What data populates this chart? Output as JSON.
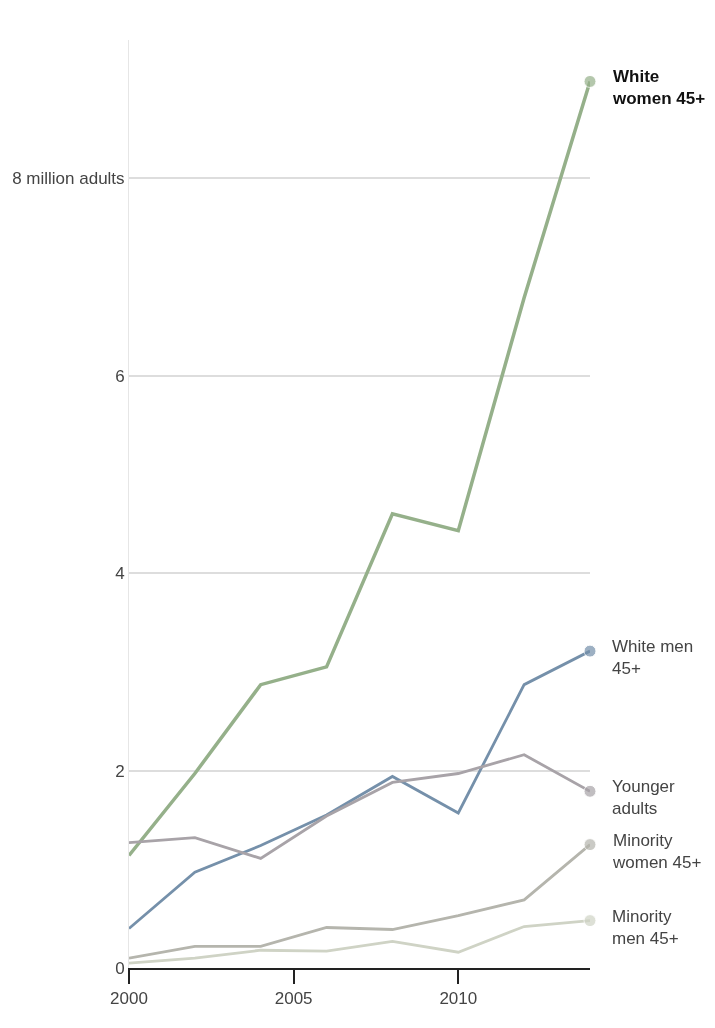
{
  "chart_data": {
    "type": "line",
    "x": [
      2000,
      2002,
      2004,
      2006,
      2008,
      2010,
      2012,
      2014
    ],
    "series": [
      {
        "name": "White women 45+",
        "color": "#95b08a",
        "values": [
          1.14,
          1.97,
          2.87,
          3.05,
          4.6,
          4.43,
          6.79,
          8.98
        ]
      },
      {
        "name": "White men 45+",
        "color": "#7590aa",
        "values": [
          0.4,
          0.97,
          1.24,
          1.55,
          1.94,
          1.57,
          2.87,
          3.21
        ]
      },
      {
        "name": "Younger adults",
        "color": "#a8a3a8",
        "values": [
          1.27,
          1.32,
          1.11,
          1.54,
          1.88,
          1.97,
          2.16,
          1.79
        ]
      },
      {
        "name": "Minority women 45+",
        "color": "#b5b5ad",
        "values": [
          0.1,
          0.22,
          0.22,
          0.41,
          0.39,
          0.53,
          0.69,
          1.25
        ]
      },
      {
        "name": "Minority men 45+",
        "color": "#cfd3c5",
        "values": [
          0.05,
          0.1,
          0.18,
          0.17,
          0.27,
          0.16,
          0.42,
          0.48
        ]
      }
    ],
    "xlim": [
      2000,
      2014
    ],
    "xticks": [
      2000,
      2005,
      2010
    ],
    "ylim": [
      0,
      9.4
    ],
    "yticks": [
      0,
      2,
      4,
      6,
      {
        "value": 8,
        "label": "8 million adults"
      }
    ],
    "grid": "y",
    "legend": "right",
    "line_style": "solid"
  }
}
